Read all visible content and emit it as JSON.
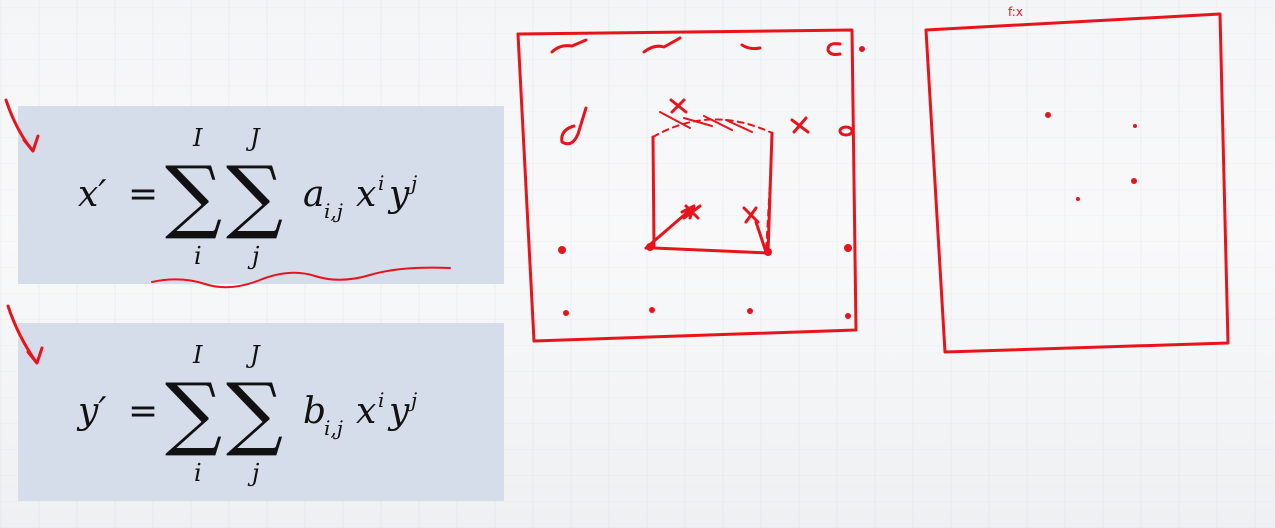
{
  "equations": [
    {
      "id": "x-mapping",
      "lhs": "x′",
      "equals": "=",
      "sum1": {
        "symbol": "∑",
        "upper": "I",
        "lower": "i"
      },
      "sum2": {
        "symbol": "∑",
        "upper": "J",
        "lower": "j"
      },
      "coefficient": "a",
      "coefficient_subscript": "i,j",
      "var1": "x",
      "var1_exp": "i",
      "var2": "y",
      "var2_exp": "j"
    },
    {
      "id": "y-mapping",
      "lhs": "y′",
      "equals": "=",
      "sum1": {
        "symbol": "∑",
        "upper": "I",
        "lower": "i"
      },
      "sum2": {
        "symbol": "∑",
        "upper": "J",
        "lower": "j"
      },
      "coefficient": "b",
      "coefficient_subscript": "i,j",
      "var1": "x",
      "var1_exp": "i",
      "var2": "y",
      "var2_exp": "j"
    }
  ],
  "annotations": {
    "ink_color": "#e8141b",
    "box_color": "#d5dcea",
    "handwritten_label": "f:x"
  }
}
